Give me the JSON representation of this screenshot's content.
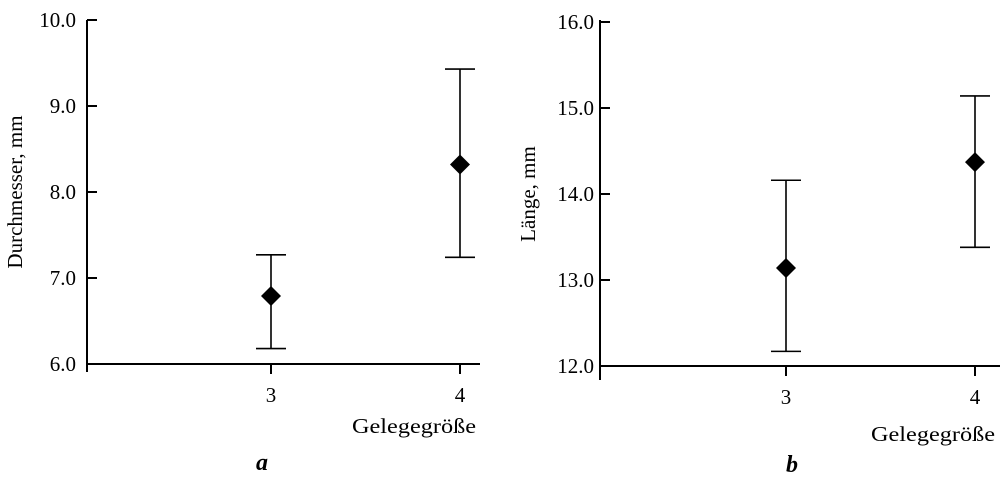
{
  "chart_data": [
    {
      "type": "scatter",
      "panel": "a",
      "title": "",
      "xlabel": "Gelegegröße",
      "ylabel": "Durchmesser, mm",
      "ylim": [
        6.0,
        10.0
      ],
      "yticks": [
        "6.0",
        "7.0",
        "8.0",
        "9.0",
        "10.0"
      ],
      "xticks": [
        "3",
        "4"
      ],
      "points": [
        {
          "x": 3,
          "y": 6.79,
          "err_low": 6.18,
          "err_high": 7.27
        },
        {
          "x": 4,
          "y": 8.32,
          "err_low": 7.24,
          "err_high": 9.43
        }
      ],
      "marker": "diamond",
      "grid": false
    },
    {
      "type": "scatter",
      "panel": "b",
      "title": "",
      "xlabel": "Gelegegröße",
      "ylabel": "Länge, mm",
      "ylim": [
        12.0,
        16.0
      ],
      "yticks": [
        "12.0",
        "13.0",
        "14.0",
        "15.0",
        "16.0"
      ],
      "xticks": [
        "3",
        "4"
      ],
      "points": [
        {
          "x": 3,
          "y": 13.14,
          "err_low": 12.17,
          "err_high": 14.16
        },
        {
          "x": 4,
          "y": 14.37,
          "err_low": 13.38,
          "err_high": 15.14
        }
      ],
      "marker": "diamond",
      "grid": false
    }
  ]
}
